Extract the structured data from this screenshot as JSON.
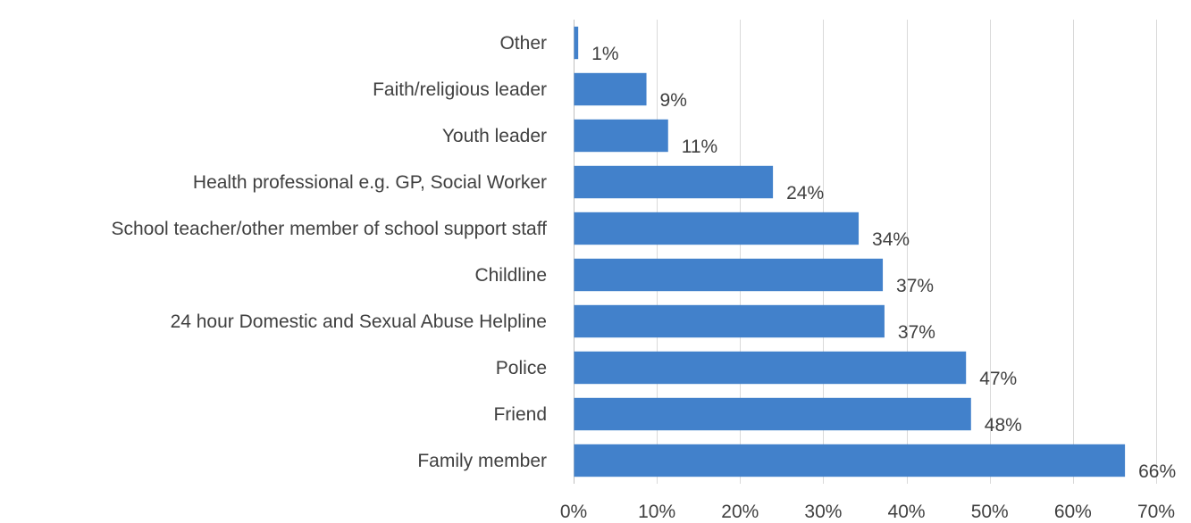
{
  "chart_data": {
    "type": "bar",
    "orientation": "horizontal",
    "categories": [
      "Other",
      "Faith/religious leader",
      "Youth leader",
      "Health professional e.g. GP, Social Worker",
      "School teacher/other member of school support staff",
      "Childline",
      "24 hour Domestic and Sexual Abuse Helpline",
      "Police",
      "Friend",
      "Family member"
    ],
    "values": [
      0.5,
      8.7,
      11.3,
      23.9,
      34.2,
      37.1,
      37.3,
      47.1,
      47.7,
      66.2
    ],
    "value_labels": [
      "1%",
      "9%",
      "11%",
      "24%",
      "34%",
      "37%",
      "37%",
      "47%",
      "48%",
      "66%"
    ],
    "xlim": [
      0,
      70
    ],
    "xticks": [
      0,
      10,
      20,
      30,
      40,
      50,
      60,
      70
    ],
    "xtick_labels": [
      "0%",
      "10%",
      "20%",
      "30%",
      "40%",
      "50%",
      "60%",
      "70%"
    ],
    "title": "",
    "xlabel": "",
    "ylabel": "",
    "grid": "vertical",
    "legend": "none",
    "bar_color": "#4281cb"
  }
}
